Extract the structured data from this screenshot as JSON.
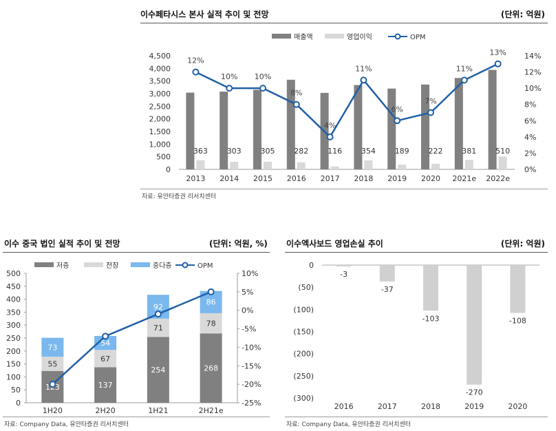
{
  "chart1": {
    "title": "이수페타시스 본사 실적 추이 및 전망",
    "unit": "(단위: 억원)",
    "source": "자료: 유안타증권 리서치센터"
  },
  "chart2": {
    "title": "이수 중국 법인 실적 추이 및 전망",
    "unit": "(단위: 억원, %)",
    "source": "자료: Company Data, 유안타증권 리서치센터"
  },
  "chart3": {
    "title": "이수엑사보드 영업손실 추이",
    "unit": "(단위: 억원)",
    "source": "자료: Company Data, 유안타증권 리서치센터"
  },
  "colors": {
    "dark_bar": "#808080",
    "light_bar": "#d9d9d9",
    "blue_bar": "#7ab8ee",
    "line": "#1f5fa6",
    "loss_bar": "#d0d0d0"
  },
  "chart_data": [
    {
      "type": "bar",
      "categories": [
        "2013",
        "2014",
        "2015",
        "2016",
        "2017",
        "2018",
        "2019",
        "2020",
        "2021e",
        "2022e"
      ],
      "series": [
        {
          "name": "매출액",
          "values": [
            3040,
            3080,
            3150,
            3550,
            3030,
            3340,
            3200,
            3360,
            3620,
            3940
          ]
        },
        {
          "name": "영업이익",
          "values": [
            363,
            303,
            305,
            282,
            116,
            354,
            189,
            222,
            381,
            510
          ]
        },
        {
          "name": "OPM",
          "axis": "right",
          "type": "line",
          "values": [
            12,
            10,
            10,
            8,
            4,
            11,
            6,
            7,
            11,
            13
          ],
          "labels": [
            "12%",
            "10%",
            "10%",
            "8%",
            "4%",
            "11%",
            "6%",
            "7%",
            "11%",
            "13%"
          ]
        }
      ],
      "ylim": [
        0,
        4500
      ],
      "yticks": [
        "0",
        "500",
        "1,000",
        "1,500",
        "2,000",
        "2,500",
        "3,000",
        "3,500",
        "4,000",
        "4,500"
      ],
      "y2lim": [
        0,
        14
      ],
      "y2ticks": [
        "0%",
        "2%",
        "4%",
        "6%",
        "8%",
        "10%",
        "12%",
        "14%"
      ],
      "legend_position": "top-center"
    },
    {
      "type": "bar",
      "stacked": true,
      "categories": [
        "1H20",
        "2H20",
        "1H21",
        "2H21e"
      ],
      "series": [
        {
          "name": "저층",
          "values": [
            123,
            137,
            254,
            268
          ]
        },
        {
          "name": "전장",
          "values": [
            55,
            67,
            71,
            78
          ]
        },
        {
          "name": "중다층",
          "values": [
            73,
            54,
            92,
            86
          ]
        },
        {
          "name": "OPM",
          "axis": "right",
          "type": "line",
          "values": [
            -20,
            -7,
            -1,
            5
          ]
        }
      ],
      "ylim": [
        0,
        500
      ],
      "yticks": [
        "0",
        "50",
        "100",
        "150",
        "200",
        "250",
        "300",
        "350",
        "400",
        "450",
        "500"
      ],
      "y2lim": [
        -25,
        10
      ],
      "y2ticks": [
        "-25%",
        "-20%",
        "-15%",
        "-10%",
        "-5%",
        "0%",
        "5%",
        "10%"
      ],
      "legend_position": "top-center"
    },
    {
      "type": "bar",
      "categories": [
        "2016",
        "2017",
        "2018",
        "2019",
        "2020"
      ],
      "values": [
        -3,
        -37,
        -103,
        -270,
        -108
      ],
      "labels": [
        "-3",
        "-37",
        "-103",
        "-270",
        "-108"
      ],
      "ylim": [
        -300,
        0
      ],
      "yticks": [
        "0",
        "(50)",
        "(100)",
        "(150)",
        "(200)",
        "(250)",
        "(300)"
      ]
    }
  ]
}
